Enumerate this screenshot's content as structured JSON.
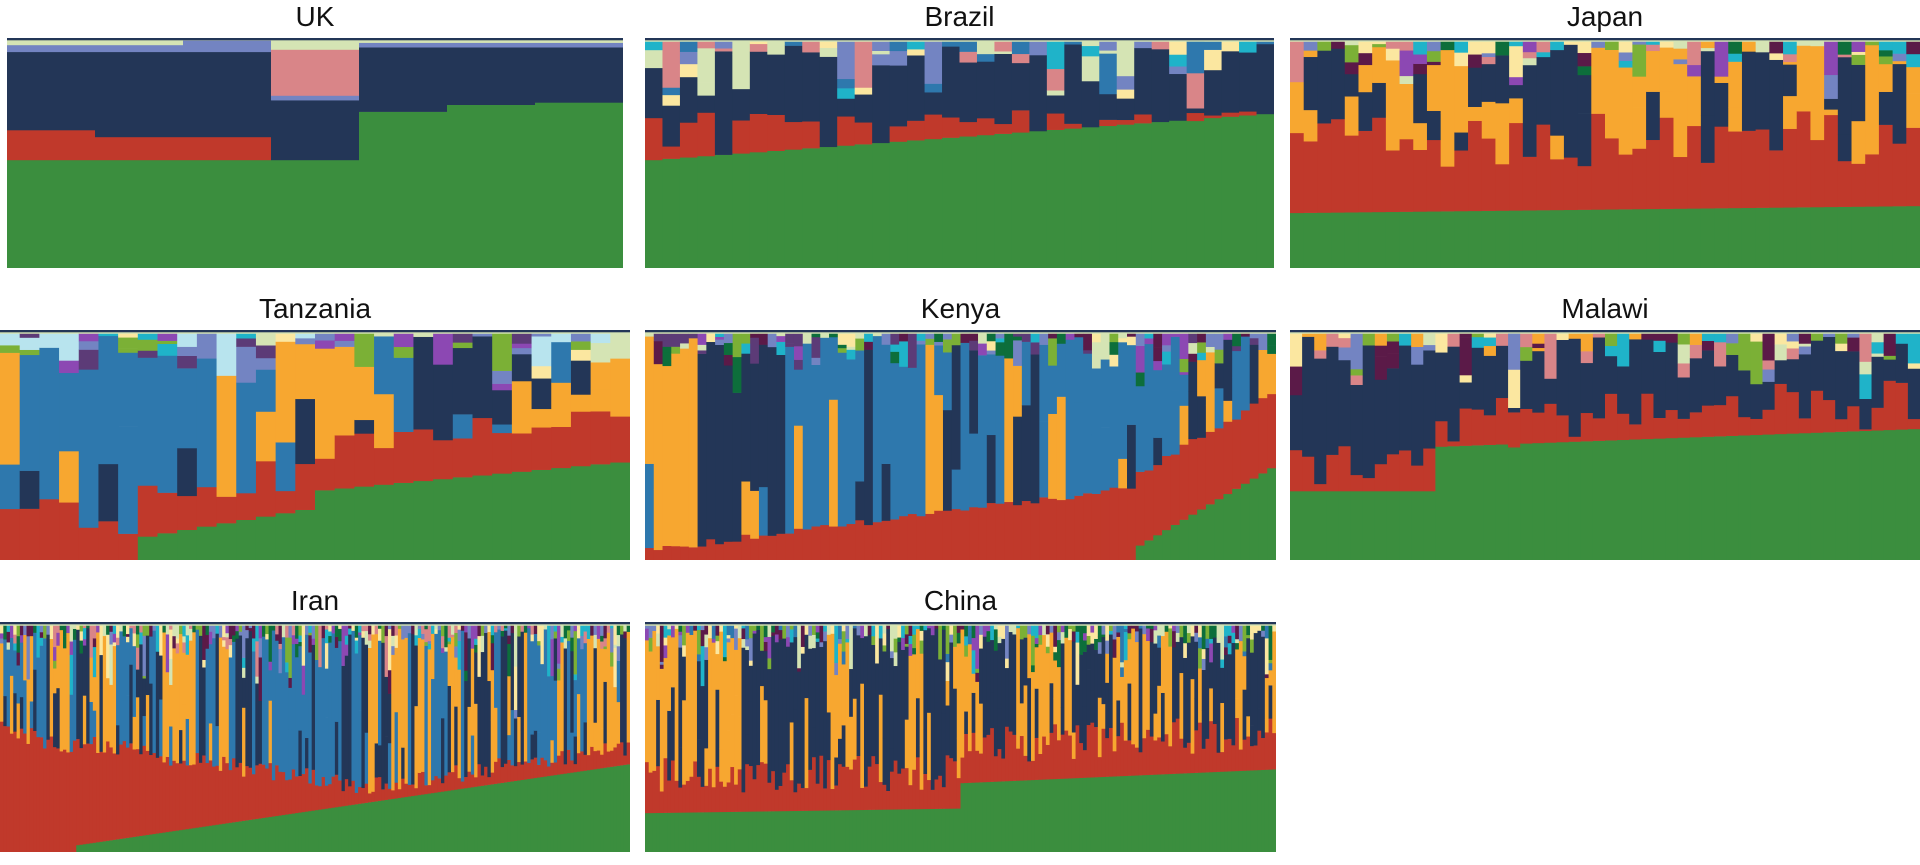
{
  "palette": {
    "green": "#3b8e3e",
    "red": "#c0392b",
    "navy": "#233657",
    "steel": "#2e78ad",
    "orange": "#f7a730",
    "lavender": "#7384c2",
    "sage": "#d5e4b4",
    "pink": "#d98588",
    "cream": "#fbe7a0",
    "cyan": "#1fb3c9",
    "purple": "#8c48b3",
    "plum": "#5b1a48",
    "darkgreen": "#0d6e3b",
    "lime": "#7bb036",
    "paleblue": "#b8e4ee",
    "violet": "#5c3b77"
  },
  "chart_data": [
    {
      "type": "bar",
      "title": "UK",
      "stacked": true,
      "normalized": true,
      "n_bars": 7,
      "legend": "none",
      "series": [
        {
          "name": "",
          "color_key": "green",
          "values": [
            0.47,
            0.47,
            0.47,
            0.47,
            0.68,
            0.71,
            0.72
          ]
        },
        {
          "name": "",
          "color_key": "red",
          "values": [
            0.13,
            0.1,
            0.1,
            0.0,
            0.0,
            0.0,
            0.0
          ]
        },
        {
          "name": "",
          "color_key": "navy",
          "values": [
            0.34,
            0.37,
            0.37,
            0.26,
            0.28,
            0.25,
            0.24
          ]
        },
        {
          "name": "",
          "color_key": "lavender",
          "values": [
            0.03,
            0.03,
            0.05,
            0.02,
            0.02,
            0.02,
            0.02
          ]
        },
        {
          "name": "",
          "color_key": "pink",
          "values": [
            0.0,
            0.0,
            0.0,
            0.2,
            0.0,
            0.0,
            0.0
          ]
        },
        {
          "name": "",
          "color_key": "sage",
          "values": [
            0.03,
            0.03,
            0.01,
            0.05,
            0.02,
            0.02,
            0.02
          ]
        }
      ]
    },
    {
      "type": "bar",
      "title": "Brazil",
      "stacked": true,
      "normalized": true,
      "n_bars": 36,
      "legend": "none",
      "composition": "sorted by green share; navy dominant, red second",
      "green_range": [
        0.47,
        0.67
      ],
      "red_range": [
        0.0,
        0.21
      ],
      "navy_range": [
        0.21,
        0.4
      ]
    },
    {
      "type": "bar",
      "title": "Japan",
      "stacked": true,
      "normalized": true,
      "n_bars": 46,
      "legend": "none",
      "composition": "sorted by green share; red, navy and orange dominant",
      "green_range": [
        0.24,
        0.27
      ],
      "red_range": [
        0.2,
        0.4
      ],
      "orange_range": [
        0.0,
        0.48
      ]
    },
    {
      "type": "bar",
      "title": "Tanzania",
      "stacked": true,
      "normalized": true,
      "n_bars": 32,
      "legend": "none",
      "composition": "sorted by green share; orange, steel blue and navy dominant",
      "green_range": [
        0.0,
        0.45
      ],
      "red_range": [
        0.09,
        0.3
      ],
      "orange_range": [
        0.0,
        0.55
      ]
    },
    {
      "type": "bar",
      "title": "Kenya",
      "stacked": true,
      "normalized": true,
      "n_bars": 72,
      "legend": "none",
      "composition": "sorted by green share; steel blue and orange dominant",
      "green_range": [
        0.0,
        0.42
      ],
      "red_range": [
        0.03,
        0.3
      ],
      "steel_range": [
        0.0,
        0.78
      ]
    },
    {
      "type": "bar",
      "title": "Malawi",
      "stacked": true,
      "normalized": true,
      "n_bars": 52,
      "legend": "none",
      "composition": "sorted by green share; navy and red dominant",
      "green_range": [
        0.3,
        0.57
      ],
      "red_range": [
        0.0,
        0.28
      ],
      "navy_range": [
        0.25,
        0.4
      ]
    },
    {
      "type": "bar",
      "title": "Iran",
      "stacked": true,
      "normalized": true,
      "n_bars": 190,
      "legend": "none",
      "composition": "sorted by green share; orange, steel blue, navy and red dominant",
      "green_range": [
        0.0,
        0.42
      ],
      "red_range": [
        0.02,
        0.5
      ],
      "steel_range": [
        0.0,
        0.7
      ]
    },
    {
      "type": "bar",
      "title": "China",
      "stacked": true,
      "normalized": true,
      "n_bars": 170,
      "legend": "none",
      "composition": "sorted by green share; orange and navy dominant",
      "green_range": [
        0.17,
        0.4
      ],
      "red_range": [
        0.1,
        0.3
      ],
      "orange_range": [
        0.1,
        0.55
      ]
    }
  ]
}
